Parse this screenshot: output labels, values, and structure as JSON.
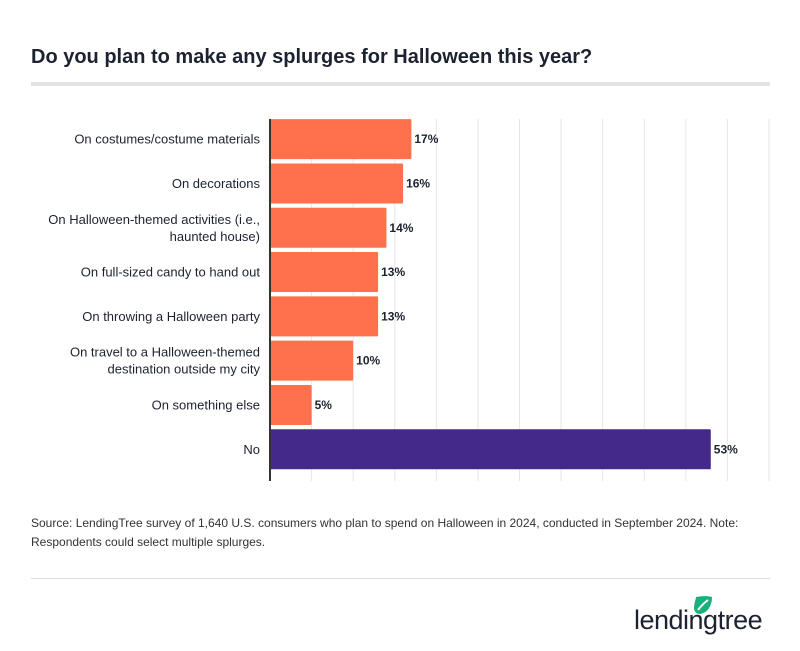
{
  "title": "Do you plan to make any splurges for Halloween this year?",
  "source": "Source: LendingTree survey of 1,640 U.S. consumers who plan to spend on Halloween in 2024, conducted in September 2024. Note: Respondents could select multiple splurges.",
  "logo_text": "lendingtree",
  "colors": {
    "primary": "#ff704d",
    "highlight": "#45298a",
    "text": "#1c2230",
    "grid": "#e6e6e6",
    "logo_leaf": "#16b27a"
  },
  "chart_data": {
    "type": "bar",
    "orientation": "horizontal",
    "title": "Do you plan to make any splurges for Halloween this year?",
    "categories": [
      [
        "On costumes/costume materials"
      ],
      [
        "On decorations"
      ],
      [
        "On Halloween-themed activities (i.e.,",
        "haunted house)"
      ],
      [
        "On full-sized candy to hand out"
      ],
      [
        "On throwing a Halloween party"
      ],
      [
        "On travel to a Halloween-themed",
        "destination outside my city"
      ],
      [
        "On something else"
      ],
      [
        "No"
      ]
    ],
    "values": [
      17,
      16,
      14,
      13,
      13,
      10,
      5,
      53
    ],
    "data_labels": [
      "17%",
      "16%",
      "14%",
      "13%",
      "13%",
      "10%",
      "5%",
      "53%"
    ],
    "xlim": [
      0,
      60
    ],
    "grid": true,
    "gridline_step": 5,
    "tick_labels_shown": false
  }
}
